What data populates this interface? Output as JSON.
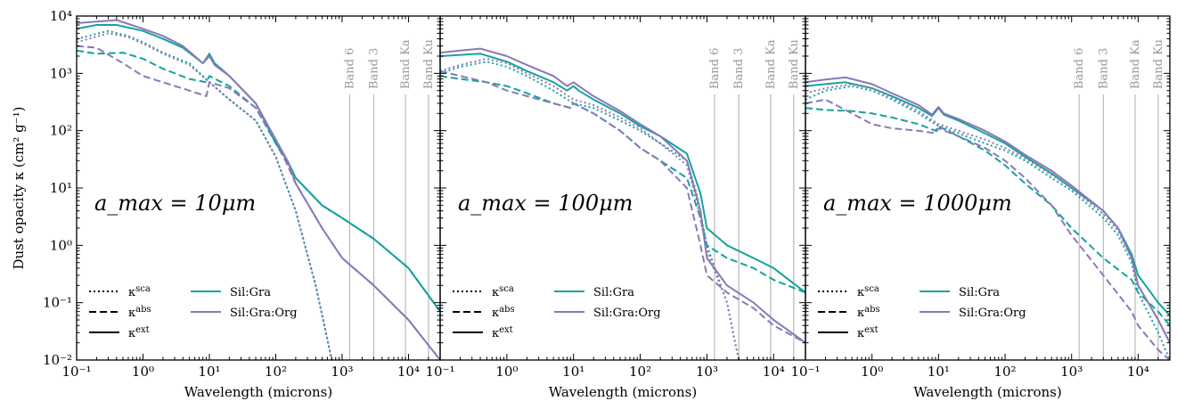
{
  "colors": {
    "Sil:Gra": "#15a39a",
    "Sil:Gra:Org": "#8a78b8",
    "band_line": "#b8b8b8"
  },
  "chart_data": [
    {
      "type": "line",
      "title": "",
      "annotation": "a_max = 10μm",
      "ylabel": "Dust opacity κ (cm² g⁻¹)",
      "xlabel": "Wavelength (microns)",
      "xscale": "log",
      "yscale": "log",
      "xlim": [
        0.1,
        30000
      ],
      "ylim": [
        0.01,
        10000
      ],
      "xticks": [
        "10⁻¹",
        "10⁰",
        "10¹",
        "10²",
        "10³",
        "10⁴"
      ],
      "yticks": [
        "10⁻²",
        "10⁻¹",
        "10⁰",
        "10¹",
        "10²",
        "10³",
        "10⁴"
      ],
      "bands": [
        {
          "label": "Band 6",
          "x": 1300
        },
        {
          "label": "Band 3",
          "x": 3000
        },
        {
          "label": "Band Ka",
          "x": 9000
        },
        {
          "label": "Band Ku",
          "x": 20000
        }
      ],
      "legend_styles": [
        {
          "label": "κ^sca",
          "style": "dotted"
        },
        {
          "label": "κ^abs",
          "style": "dashed"
        },
        {
          "label": "κ^ext",
          "style": "solid"
        }
      ],
      "legend_series": [
        "Sil:Gra",
        "Sil:Gra:Org"
      ],
      "series": [
        {
          "name": "Sil:Gra",
          "kind": "ext",
          "x": [
            0.1,
            0.2,
            0.4,
            1,
            2,
            4,
            8,
            10,
            12,
            20,
            50,
            100,
            150,
            200,
            500,
            1000,
            3000,
            10000,
            30000
          ],
          "y": [
            6000,
            7000,
            7000,
            5500,
            4000,
            2800,
            1500,
            2200,
            1500,
            900,
            300,
            60,
            30,
            15,
            5,
            3,
            1.3,
            0.4,
            0.07
          ]
        },
        {
          "name": "Sil:Gra",
          "kind": "sca",
          "x": [
            0.1,
            0.3,
            0.6,
            1,
            2,
            5,
            10,
            20,
            50,
            100,
            200,
            400,
            700
          ],
          "y": [
            4000,
            5500,
            4500,
            3500,
            2300,
            1500,
            700,
            350,
            150,
            35,
            4,
            0.2,
            0.01
          ]
        },
        {
          "name": "Sil:Gra",
          "kind": "abs",
          "x": [
            0.1,
            0.2,
            0.5,
            1,
            2,
            5,
            9,
            10,
            20,
            50,
            100,
            200,
            500,
            1000,
            3000,
            10000,
            30000
          ],
          "y": [
            2500,
            2200,
            2300,
            1800,
            1200,
            800,
            700,
            900,
            600,
            250,
            60,
            15,
            5,
            3,
            1.3,
            0.4,
            0.07
          ]
        },
        {
          "name": "Sil:Gra:Org",
          "kind": "ext",
          "x": [
            0.1,
            0.2,
            0.4,
            1,
            2,
            4,
            8,
            10,
            12,
            20,
            50,
            100,
            150,
            200,
            500,
            1000,
            3000,
            10000,
            30000
          ],
          "y": [
            7500,
            8000,
            8500,
            6000,
            4500,
            3000,
            1500,
            2000,
            1400,
            900,
            300,
            70,
            30,
            12,
            2,
            0.6,
            0.2,
            0.05,
            0.01
          ]
        },
        {
          "name": "Sil:Gra:Org",
          "kind": "sca",
          "x": [
            0.1,
            0.3,
            0.6,
            1,
            2,
            5,
            10,
            20,
            50,
            100,
            200,
            400,
            700
          ],
          "y": [
            3500,
            5000,
            4300,
            3300,
            2200,
            1400,
            700,
            350,
            150,
            35,
            4,
            0.2,
            0.01
          ]
        },
        {
          "name": "Sil:Gra:Org",
          "kind": "abs",
          "x": [
            0.1,
            0.2,
            0.5,
            1,
            2,
            5,
            9,
            10,
            20,
            50,
            100,
            200,
            500,
            1000,
            3000,
            10000,
            30000
          ],
          "y": [
            3000,
            2800,
            1500,
            900,
            700,
            500,
            400,
            700,
            550,
            250,
            70,
            12,
            2,
            0.6,
            0.2,
            0.05,
            0.01
          ]
        }
      ]
    },
    {
      "type": "line",
      "title": "",
      "annotation": "a_max = 100μm",
      "xlabel": "Wavelength (microns)",
      "xscale": "log",
      "yscale": "log",
      "xlim": [
        0.1,
        30000
      ],
      "ylim": [
        0.01,
        10000
      ],
      "xticks": [
        "10⁻¹",
        "10⁰",
        "10¹",
        "10²",
        "10³",
        "10⁴"
      ],
      "bands": [
        {
          "label": "Band 6",
          "x": 1300
        },
        {
          "label": "Band 3",
          "x": 3000
        },
        {
          "label": "Band Ka",
          "x": 9000
        },
        {
          "label": "Band Ku",
          "x": 20000
        }
      ],
      "legend_styles": [
        {
          "label": "κ^sca",
          "style": "dotted"
        },
        {
          "label": "κ^abs",
          "style": "dashed"
        },
        {
          "label": "κ^ext",
          "style": "solid"
        }
      ],
      "legend_series": [
        "Sil:Gra",
        "Sil:Gra:Org"
      ],
      "series": [
        {
          "name": "Sil:Gra",
          "kind": "ext",
          "x": [
            0.1,
            0.2,
            0.4,
            1,
            2,
            5,
            8,
            10,
            12,
            20,
            50,
            100,
            200,
            500,
            800,
            1000,
            2000,
            5000,
            10000,
            30000
          ],
          "y": [
            2000,
            2100,
            2200,
            1600,
            1100,
            700,
            500,
            600,
            500,
            350,
            200,
            120,
            80,
            40,
            8,
            2,
            1,
            0.6,
            0.4,
            0.15
          ]
        },
        {
          "name": "Sil:Gra",
          "kind": "sca",
          "x": [
            0.1,
            0.2,
            0.5,
            1,
            2,
            5,
            10,
            20,
            50,
            100,
            200,
            500,
            700,
            1000,
            2000,
            3000
          ],
          "y": [
            1000,
            1300,
            1600,
            1300,
            900,
            500,
            300,
            250,
            150,
            100,
            60,
            30,
            8,
            1,
            0.1,
            0.01
          ]
        },
        {
          "name": "Sil:Gra",
          "kind": "abs",
          "x": [
            0.1,
            0.2,
            0.5,
            1,
            2,
            5,
            9,
            10,
            20,
            50,
            100,
            200,
            500,
            800,
            1000,
            2000,
            5000,
            10000,
            30000
          ],
          "y": [
            900,
            800,
            700,
            600,
            450,
            300,
            250,
            300,
            200,
            100,
            50,
            30,
            15,
            3,
            1,
            0.6,
            0.4,
            0.25,
            0.15
          ]
        },
        {
          "name": "Sil:Gra:Org",
          "kind": "ext",
          "x": [
            0.1,
            0.2,
            0.4,
            1,
            2,
            5,
            8,
            10,
            12,
            20,
            50,
            100,
            200,
            500,
            800,
            1000,
            2000,
            5000,
            10000,
            30000
          ],
          "y": [
            2300,
            2500,
            2700,
            2000,
            1400,
            900,
            600,
            700,
            600,
            400,
            220,
            130,
            80,
            30,
            4,
            0.6,
            0.2,
            0.1,
            0.05,
            0.02
          ]
        },
        {
          "name": "Sil:Gra:Org",
          "kind": "sca",
          "x": [
            0.1,
            0.2,
            0.5,
            1,
            2,
            5,
            10,
            20,
            50,
            100,
            200,
            500,
            700,
            1000,
            2000,
            3000
          ],
          "y": [
            1100,
            1400,
            1800,
            1500,
            1000,
            600,
            350,
            280,
            170,
            110,
            60,
            25,
            6,
            0.8,
            0.1,
            0.01
          ]
        },
        {
          "name": "Sil:Gra:Org",
          "kind": "abs",
          "x": [
            0.1,
            0.2,
            0.5,
            1,
            2,
            5,
            9,
            10,
            20,
            50,
            100,
            200,
            500,
            800,
            1000,
            2000,
            5000,
            10000,
            30000
          ],
          "y": [
            1100,
            900,
            700,
            500,
            400,
            300,
            250,
            300,
            200,
            100,
            50,
            30,
            10,
            1,
            0.3,
            0.15,
            0.08,
            0.04,
            0.02
          ]
        }
      ]
    },
    {
      "type": "line",
      "title": "",
      "annotation": "a_max = 1000μm",
      "xlabel": "Wavelength (microns)",
      "xscale": "log",
      "yscale": "log",
      "xlim": [
        0.1,
        30000
      ],
      "ylim": [
        0.01,
        10000
      ],
      "xticks": [
        "10⁻¹",
        "10⁰",
        "10¹",
        "10²",
        "10³",
        "10⁴"
      ],
      "bands": [
        {
          "label": "Band 6",
          "x": 1300
        },
        {
          "label": "Band 3",
          "x": 3000
        },
        {
          "label": "Band Ka",
          "x": 9000
        },
        {
          "label": "Band Ku",
          "x": 20000
        }
      ],
      "legend_styles": [
        {
          "label": "κ^sca",
          "style": "dotted"
        },
        {
          "label": "κ^abs",
          "style": "dashed"
        },
        {
          "label": "κ^ext",
          "style": "solid"
        }
      ],
      "legend_series": [
        "Sil:Gra",
        "Sil:Gra:Org"
      ],
      "series": [
        {
          "name": "Sil:Gra",
          "kind": "ext",
          "x": [
            0.1,
            0.2,
            0.4,
            1,
            2,
            5,
            8,
            10,
            12,
            20,
            50,
            100,
            200,
            500,
            1000,
            3000,
            5000,
            8000,
            10000,
            20000,
            30000
          ],
          "y": [
            600,
            650,
            700,
            550,
            400,
            250,
            180,
            250,
            190,
            150,
            90,
            60,
            35,
            18,
            10,
            4,
            2,
            0.7,
            0.3,
            0.1,
            0.06
          ]
        },
        {
          "name": "Sil:Gra",
          "kind": "sca",
          "x": [
            0.1,
            0.2,
            0.5,
            1,
            2,
            5,
            10,
            20,
            50,
            100,
            200,
            500,
            1000,
            3000,
            5000,
            8000,
            10000,
            20000,
            30000
          ],
          "y": [
            350,
            500,
            600,
            500,
            350,
            200,
            120,
            90,
            60,
            45,
            30,
            15,
            9,
            3,
            1.5,
            0.5,
            0.15,
            0.03,
            0.01
          ]
        },
        {
          "name": "Sil:Gra",
          "kind": "abs",
          "x": [
            0.1,
            0.2,
            0.5,
            1,
            2,
            5,
            9,
            10,
            20,
            50,
            100,
            200,
            500,
            1000,
            3000,
            8000,
            10000,
            20000,
            30000
          ],
          "y": [
            250,
            230,
            220,
            200,
            170,
            130,
            100,
            120,
            80,
            45,
            25,
            12,
            5,
            2,
            0.6,
            0.25,
            0.15,
            0.07,
            0.04
          ]
        },
        {
          "name": "Sil:Gra:Org",
          "kind": "ext",
          "x": [
            0.1,
            0.2,
            0.4,
            1,
            2,
            5,
            8,
            10,
            12,
            20,
            50,
            100,
            200,
            500,
            1000,
            3000,
            5000,
            8000,
            10000,
            20000,
            30000
          ],
          "y": [
            700,
            780,
            850,
            650,
            450,
            280,
            190,
            260,
            200,
            160,
            100,
            65,
            38,
            20,
            11,
            4,
            2,
            0.6,
            0.2,
            0.05,
            0.02
          ]
        },
        {
          "name": "Sil:Gra:Org",
          "kind": "sca",
          "x": [
            0.1,
            0.2,
            0.5,
            1,
            2,
            5,
            10,
            20,
            50,
            100,
            200,
            500,
            1000,
            3000,
            5000,
            8000,
            10000,
            20000,
            30000
          ],
          "y": [
            450,
            550,
            650,
            550,
            380,
            220,
            130,
            100,
            70,
            50,
            33,
            17,
            10,
            3.5,
            1.8,
            0.6,
            0.2,
            0.05,
            0.02
          ]
        },
        {
          "name": "Sil:Gra:Org",
          "kind": "abs",
          "x": [
            0.1,
            0.2,
            0.5,
            1,
            2,
            5,
            9,
            10,
            20,
            50,
            100,
            200,
            500,
            1000,
            3000,
            8000,
            10000,
            20000,
            30000
          ],
          "y": [
            300,
            350,
            200,
            130,
            110,
            100,
            90,
            110,
            80,
            50,
            30,
            15,
            5,
            1.5,
            0.3,
            0.07,
            0.04,
            0.015,
            0.01
          ]
        }
      ]
    }
  ]
}
